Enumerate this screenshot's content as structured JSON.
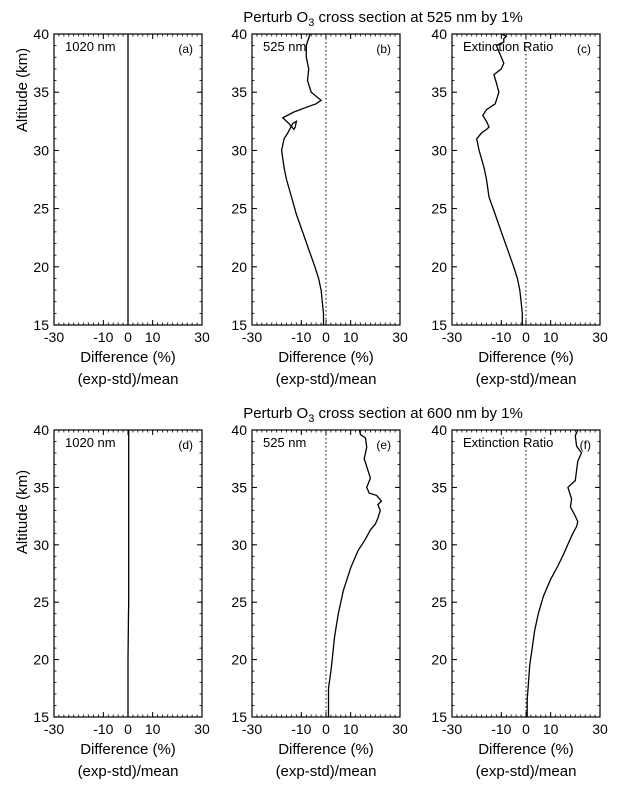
{
  "figure": {
    "section_titles": [
      {
        "prefix": "Perturb O",
        "sub": "3",
        "suffix": " cross section at 525 nm by 1%"
      },
      {
        "prefix": "Perturb O",
        "sub": "3",
        "suffix": " cross section at 600 nm by 1%"
      }
    ],
    "ylabel": "Altitude (km)",
    "xlabel": "Difference (%)",
    "xlabel2": "(exp-std)/mean"
  },
  "chart_data": [
    {
      "type": "line",
      "panel": "(a)",
      "label": "1020 nm",
      "xlim": [
        -30,
        30
      ],
      "ylim": [
        15,
        40
      ],
      "xticks": [
        -30,
        -10,
        0,
        10,
        30
      ],
      "yticks": [
        15,
        20,
        25,
        30,
        35,
        40
      ],
      "reference_line": false,
      "series": [
        {
          "x": [
            0,
            0,
            0,
            0,
            0,
            0
          ],
          "y": [
            15,
            20,
            25,
            30,
            35,
            40
          ]
        }
      ]
    },
    {
      "type": "line",
      "panel": "(b)",
      "label": "525 nm",
      "xlim": [
        -30,
        30
      ],
      "ylim": [
        15,
        40
      ],
      "xticks": [
        -30,
        -10,
        0,
        10,
        30
      ],
      "yticks": [
        15,
        20,
        25,
        30,
        35,
        40
      ],
      "reference_line": true,
      "series": [
        {
          "x": [
            -1,
            -1,
            -1.5,
            -2,
            -3,
            -4.5,
            -7,
            -9.5,
            -12,
            -14,
            -16,
            -17,
            -18,
            -17,
            -15.5,
            -13.5,
            -12,
            -12.5,
            -13,
            -15,
            -17.5,
            -13,
            -8,
            -4,
            -2,
            -6,
            -7.5,
            -7,
            -8,
            -8,
            -6.5
          ],
          "y": [
            15,
            16,
            17,
            18,
            19,
            20,
            21.5,
            23,
            24.5,
            26,
            27.5,
            28.5,
            30,
            31,
            31.5,
            32.3,
            32.5,
            32,
            31.8,
            32.3,
            32.8,
            33.3,
            33.7,
            34,
            34.3,
            35,
            36,
            37,
            38,
            39,
            40
          ]
        }
      ]
    },
    {
      "type": "line",
      "panel": "(c)",
      "label": "Extinction Ratio",
      "xlim": [
        -30,
        30
      ],
      "ylim": [
        15,
        40
      ],
      "xticks": [
        -30,
        -10,
        0,
        10,
        30
      ],
      "yticks": [
        15,
        20,
        25,
        30,
        35,
        40
      ],
      "reference_line": true,
      "series": [
        {
          "x": [
            -1.5,
            -1.5,
            -2,
            -2.5,
            -3.5,
            -5,
            -7.5,
            -10,
            -12.5,
            -15,
            -16,
            -17,
            -19,
            -20,
            -18,
            -16,
            -15,
            -16,
            -17.5,
            -16,
            -12.5,
            -11,
            -12,
            -13,
            -10,
            -9,
            -10,
            -11,
            -12,
            -9,
            -9,
            -8,
            -10
          ],
          "y": [
            15,
            16,
            17,
            18,
            19,
            20,
            21.5,
            23,
            24.5,
            26,
            27.5,
            28.5,
            30,
            31,
            31.5,
            31.8,
            32,
            32.5,
            33,
            33.5,
            34,
            35,
            35.8,
            36.5,
            37,
            37.5,
            38,
            38.5,
            39,
            39.3,
            39.6,
            39.8,
            40
          ]
        }
      ]
    },
    {
      "type": "line",
      "panel": "(d)",
      "label": "1020 nm",
      "xlim": [
        -30,
        30
      ],
      "ylim": [
        15,
        40
      ],
      "xticks": [
        -30,
        -10,
        0,
        10,
        30
      ],
      "yticks": [
        15,
        20,
        25,
        30,
        35,
        40
      ],
      "reference_line": false,
      "series": [
        {
          "x": [
            0,
            0,
            0,
            0.2,
            0.3,
            0.3,
            0.3,
            0.3,
            0.3,
            0.3
          ],
          "y": [
            15,
            18,
            20,
            24,
            25,
            28,
            30,
            33,
            36,
            40
          ]
        }
      ]
    },
    {
      "type": "line",
      "panel": "(e)",
      "label": "525 nm",
      "xlim": [
        -30,
        30
      ],
      "ylim": [
        15,
        40
      ],
      "xticks": [
        -30,
        -10,
        0,
        10,
        30
      ],
      "yticks": [
        15,
        20,
        25,
        30,
        35,
        40
      ],
      "reference_line": true,
      "series": [
        {
          "x": [
            1,
            1,
            1,
            2,
            2.5,
            3.5,
            5,
            7,
            10,
            13,
            16,
            18,
            20,
            21,
            22,
            21,
            22.5,
            20.5,
            17.5,
            16.5,
            18,
            17,
            15.5,
            16.5,
            16,
            14,
            13.5
          ],
          "y": [
            15,
            16.5,
            17.5,
            19,
            20,
            22,
            24,
            26,
            28,
            29.5,
            30.5,
            31.3,
            31.8,
            32.3,
            33,
            33.5,
            33.8,
            34.3,
            34.5,
            35,
            35.8,
            36.5,
            37.5,
            38.5,
            39.3,
            39.6,
            40
          ]
        }
      ]
    },
    {
      "type": "line",
      "panel": "(f)",
      "label": "Extinction Ratio",
      "xlim": [
        -30,
        30
      ],
      "ylim": [
        15,
        40
      ],
      "xticks": [
        -30,
        -10,
        0,
        10,
        30
      ],
      "yticks": [
        15,
        20,
        25,
        30,
        35,
        40
      ],
      "reference_line": true,
      "series": [
        {
          "x": [
            0.5,
            0.5,
            1,
            1.5,
            2.5,
            3.5,
            5,
            7,
            10,
            13,
            15.5,
            17.5,
            19,
            20.5,
            21,
            20,
            18,
            18.5,
            17,
            20,
            20.5,
            21,
            22.5,
            20.5,
            20,
            21
          ],
          "y": [
            15,
            16.5,
            18,
            19.5,
            21,
            22.5,
            24,
            25.5,
            27,
            28.2,
            29.3,
            30.3,
            31,
            31.6,
            32,
            32.5,
            33.3,
            34,
            35,
            35.6,
            36.5,
            37.3,
            38,
            38.6,
            39.5,
            40
          ]
        }
      ]
    }
  ]
}
